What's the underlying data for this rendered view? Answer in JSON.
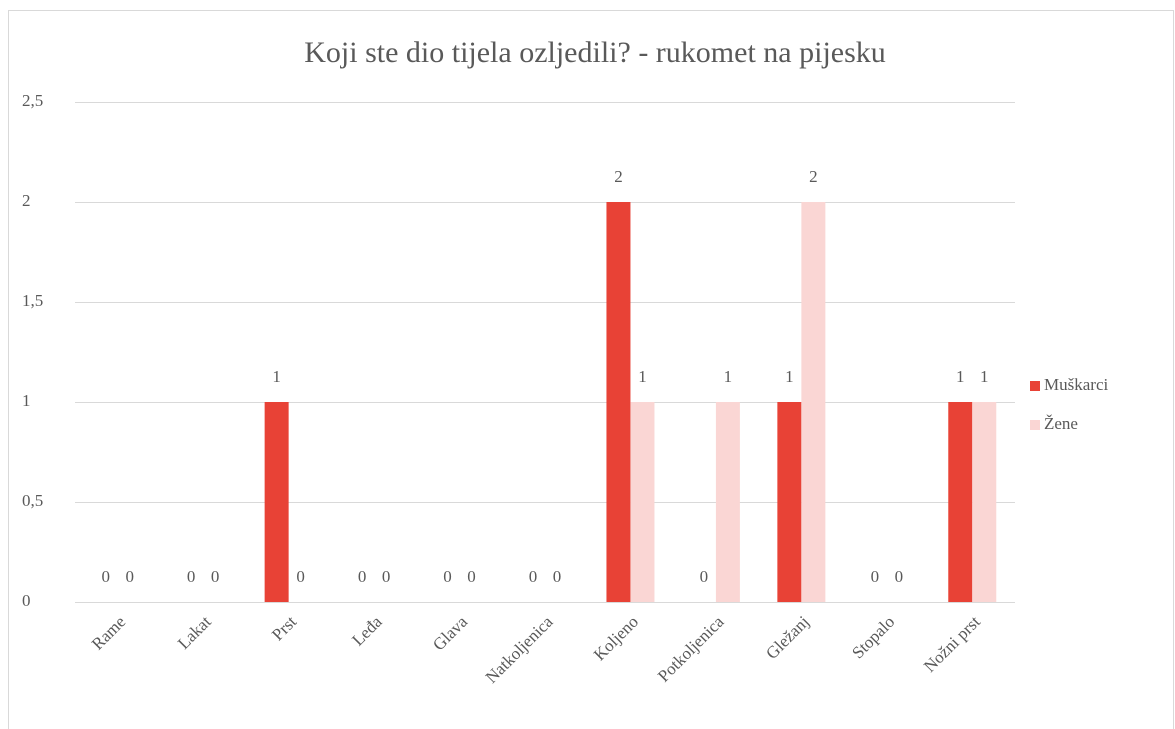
{
  "chart_data": {
    "type": "bar",
    "title": "Koji ste dio tijela ozljedili?   - rukomet na pijesku",
    "categories": [
      "Rame",
      "Lakat",
      "Prst",
      "Leđa",
      "Glava",
      "Natkoljenica",
      "Koljeno",
      "Potkoljenica",
      "Gležanj",
      "Stopalo",
      "Nožni prst"
    ],
    "series": [
      {
        "name": "Muškarci",
        "color": "#e84236",
        "values": [
          0,
          0,
          1,
          0,
          0,
          0,
          2,
          0,
          1,
          0,
          1
        ]
      },
      {
        "name": "Žene",
        "color": "#fad6d4",
        "values": [
          0,
          0,
          0,
          0,
          0,
          0,
          1,
          1,
          2,
          0,
          1
        ]
      }
    ],
    "ylim": [
      0,
      2.5
    ],
    "yticks": [
      0,
      {
        "value": 0.5,
        "label": "0,5"
      },
      1,
      {
        "value": 1.5,
        "label": "1,5"
      },
      2,
      {
        "value": 2.5,
        "label": "2,5"
      }
    ],
    "grid": true,
    "legend": "right"
  }
}
